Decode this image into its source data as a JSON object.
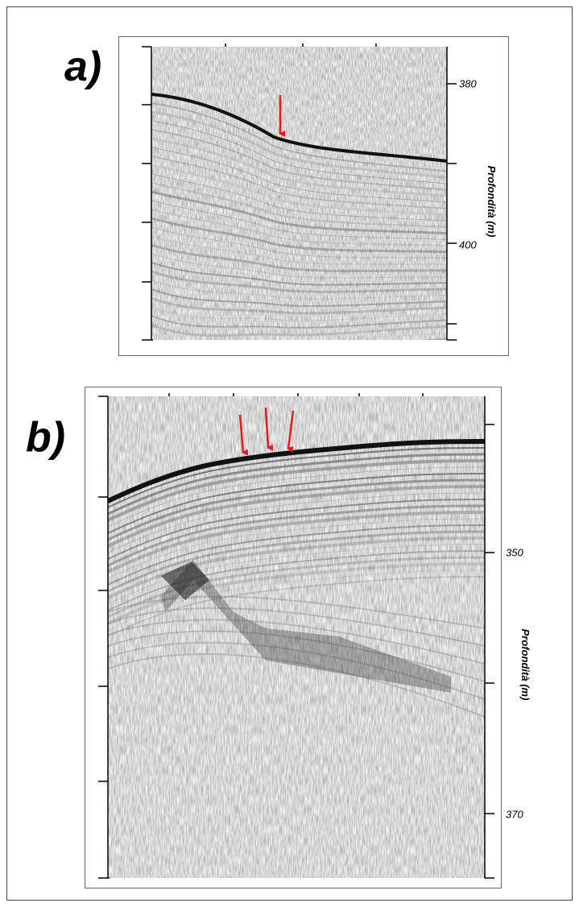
{
  "panels": [
    {
      "label": "a)",
      "axis_label": "Profondità (m)",
      "tick_labels": [
        "380",
        "400"
      ]
    },
    {
      "label": "b)",
      "axis_label": "Profondità (m)",
      "tick_labels": [
        "350",
        "370"
      ]
    }
  ]
}
